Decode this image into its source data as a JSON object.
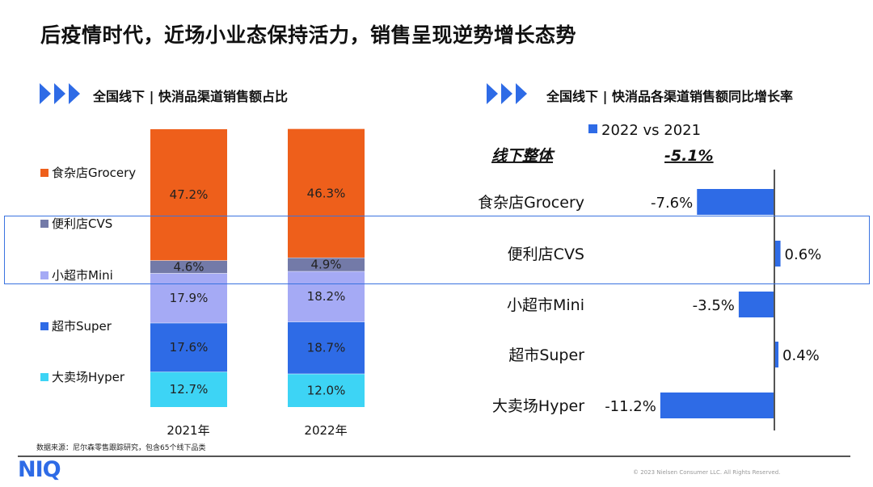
{
  "title": "后疫情时代，近场小业态保持活力，销售呈现逆势增长态势",
  "left_section_title": "全国线下 | 快消品渠道销售额占比",
  "right_section_title": "全国线下 | 快消品各渠道销售额同比增长率",
  "source": "数据来源：尼尔森零售跟踪研究，包含65个线下品类",
  "logo": "NIQ",
  "copyright": "© 2023 Nielsen Consumer LLC. All Rights Reserved.",
  "accent_color": "#2E6BE6",
  "chart_data": [
    {
      "type": "bar",
      "stacked": true,
      "categories": [
        "2021年",
        "2022年"
      ],
      "series": [
        {
          "name": "大卖场Hyper",
          "color": "#3DD4F5",
          "values": [
            12.7,
            12.0
          ],
          "labels": [
            "12.7%",
            "12.0%"
          ]
        },
        {
          "name": "超市Super",
          "color": "#2E6BE6",
          "values": [
            17.6,
            18.7
          ],
          "labels": [
            "17.6%",
            "18.7%"
          ]
        },
        {
          "name": "小超市Mini",
          "color": "#A5AAF5",
          "values": [
            17.9,
            18.2
          ],
          "labels": [
            "17.9%",
            "18.2%"
          ]
        },
        {
          "name": "便利店CVS",
          "color": "#737AA8",
          "values": [
            4.6,
            4.9
          ],
          "labels": [
            "4.6%",
            "4.9%"
          ]
        },
        {
          "name": "食杂店Grocery",
          "color": "#EE5F1B",
          "values": [
            47.2,
            46.3
          ],
          "labels": [
            "47.2%",
            "46.3%"
          ]
        }
      ],
      "legend_order": [
        "食杂店Grocery",
        "便利店CVS",
        "小超市Mini",
        "超市Super",
        "大卖场Hyper"
      ],
      "legend_placement": "left",
      "ylim": [
        0,
        100
      ]
    },
    {
      "type": "bar",
      "orientation": "horizontal",
      "legend": "2022 vs 2021",
      "series_color": "#2E6BE6",
      "total": {
        "label": "线下整体",
        "value": -5.1,
        "value_label": "-5.1%"
      },
      "categories": [
        "食杂店Grocery",
        "便利店CVS",
        "小超市Mini",
        "超市Super",
        "大卖场Hyper"
      ],
      "values": [
        -7.6,
        0.6,
        -3.5,
        0.4,
        -11.2
      ],
      "labels": [
        "-7.6%",
        "0.6%",
        "-3.5%",
        "0.4%",
        "-11.2%"
      ]
    }
  ]
}
